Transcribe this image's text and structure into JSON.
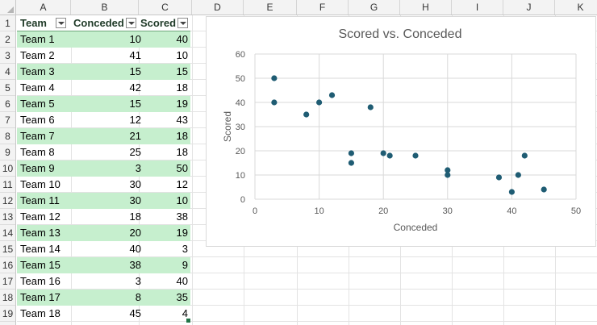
{
  "columns": [
    "A",
    "B",
    "C",
    "D",
    "E",
    "F",
    "G",
    "H",
    "I",
    "J",
    "K"
  ],
  "rows": [
    "1",
    "2",
    "3",
    "4",
    "5",
    "6",
    "7",
    "8",
    "9",
    "10",
    "11",
    "12",
    "13",
    "14",
    "15",
    "16",
    "17",
    "18",
    "19"
  ],
  "table": {
    "headers": {
      "team": "Team",
      "conceded": "Conceded",
      "scored": "Scored"
    },
    "data": [
      {
        "team": "Team 1",
        "conceded": "10",
        "scored": "40"
      },
      {
        "team": "Team 2",
        "conceded": "41",
        "scored": "10"
      },
      {
        "team": "Team 3",
        "conceded": "15",
        "scored": "15"
      },
      {
        "team": "Team 4",
        "conceded": "42",
        "scored": "18"
      },
      {
        "team": "Team 5",
        "conceded": "15",
        "scored": "19"
      },
      {
        "team": "Team 6",
        "conceded": "12",
        "scored": "43"
      },
      {
        "team": "Team 7",
        "conceded": "21",
        "scored": "18"
      },
      {
        "team": "Team 8",
        "conceded": "25",
        "scored": "18"
      },
      {
        "team": "Team 9",
        "conceded": "3",
        "scored": "50"
      },
      {
        "team": "Team 10",
        "conceded": "30",
        "scored": "12"
      },
      {
        "team": "Team 11",
        "conceded": "30",
        "scored": "10"
      },
      {
        "team": "Team 12",
        "conceded": "18",
        "scored": "38"
      },
      {
        "team": "Team 13",
        "conceded": "20",
        "scored": "19"
      },
      {
        "team": "Team 14",
        "conceded": "40",
        "scored": "3"
      },
      {
        "team": "Team 15",
        "conceded": "38",
        "scored": "9"
      },
      {
        "team": "Team 16",
        "conceded": "3",
        "scored": "40"
      },
      {
        "team": "Team 17",
        "conceded": "8",
        "scored": "35"
      },
      {
        "team": "Team 18",
        "conceded": "45",
        "scored": "4"
      }
    ]
  },
  "colors": {
    "band": "#c6efce",
    "point": "#1f5c73",
    "gridline": "#d9d9d9",
    "axis_text": "#595959"
  },
  "chart_data": {
    "type": "scatter",
    "title": "Scored vs. Conceded",
    "xlabel": "Conceded",
    "ylabel": "Scored",
    "xlim": [
      0,
      50
    ],
    "ylim": [
      0,
      60
    ],
    "x_ticks": [
      "0",
      "10",
      "20",
      "30",
      "40",
      "50"
    ],
    "y_ticks": [
      "0",
      "10",
      "20",
      "30",
      "40",
      "50",
      "60"
    ],
    "grid": true,
    "legend": "none",
    "points": [
      {
        "x": 10,
        "y": 40
      },
      {
        "x": 41,
        "y": 10
      },
      {
        "x": 15,
        "y": 15
      },
      {
        "x": 42,
        "y": 18
      },
      {
        "x": 15,
        "y": 19
      },
      {
        "x": 12,
        "y": 43
      },
      {
        "x": 21,
        "y": 18
      },
      {
        "x": 25,
        "y": 18
      },
      {
        "x": 3,
        "y": 50
      },
      {
        "x": 30,
        "y": 12
      },
      {
        "x": 30,
        "y": 10
      },
      {
        "x": 18,
        "y": 38
      },
      {
        "x": 20,
        "y": 19
      },
      {
        "x": 40,
        "y": 3
      },
      {
        "x": 38,
        "y": 9
      },
      {
        "x": 3,
        "y": 40
      },
      {
        "x": 8,
        "y": 35
      },
      {
        "x": 45,
        "y": 4
      }
    ]
  }
}
